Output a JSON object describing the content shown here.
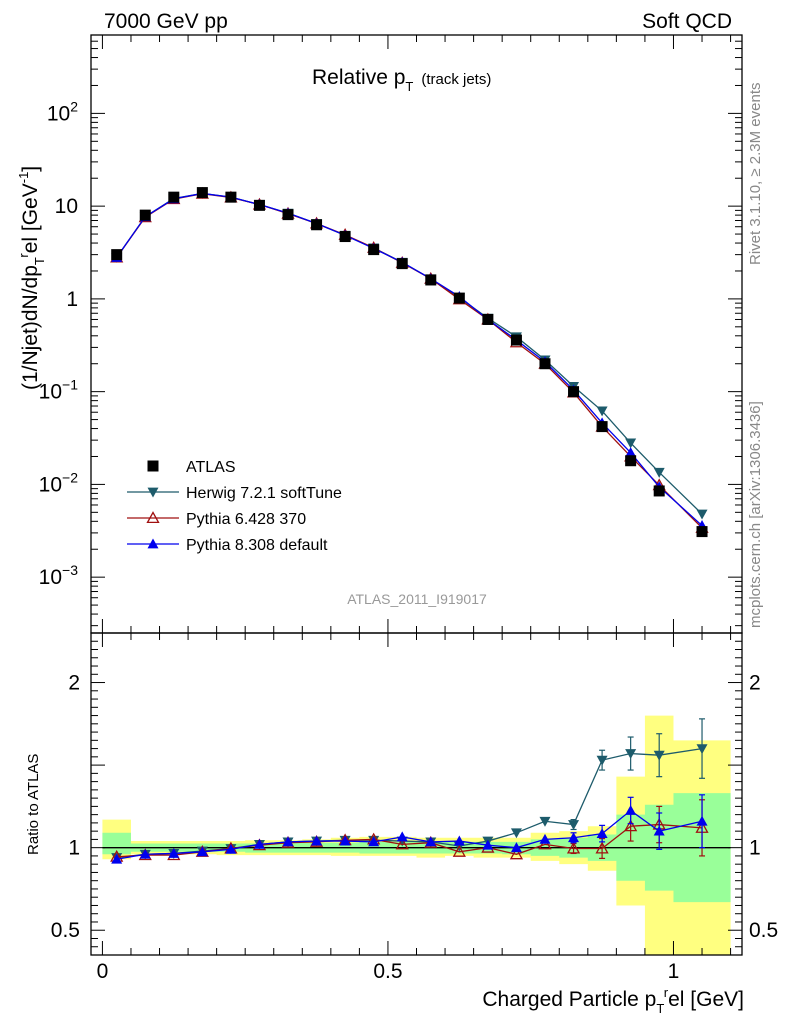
{
  "header": {
    "left": "7000 GeV pp",
    "right": "Soft QCD"
  },
  "side_labels": {
    "rivet": "Rivet 3.1.10, ≥ 2.3M events",
    "mcplots": "mcplots.cern.ch [arXiv:1306.3436]"
  },
  "plot_title": {
    "main": "Relative p",
    "sub": "T",
    "extra": "(track jets)"
  },
  "analysis_id": "ATLAS_2011_I919017",
  "chart_data": [
    {
      "type": "scatter",
      "panel": "main",
      "yscale": "log",
      "ylabel": "(1/Njet)dN/dpᵀʳel [GeV⁻¹]",
      "ylabel_parts": {
        "a": "(1/Njet)dN/dp",
        "sub": "T",
        "sup": "r",
        "b": "el [GeV",
        "supb": "-1",
        "c": "]"
      },
      "xlim": [
        -0.02,
        1.12
      ],
      "ylim": [
        0.00025,
        700
      ],
      "y_ticks": [
        {
          "v": 0.001,
          "base": "10",
          "exp": "−3"
        },
        {
          "v": 0.01,
          "base": "10",
          "exp": "−2"
        },
        {
          "v": 0.1,
          "base": "10",
          "exp": "−1"
        },
        {
          "v": 1,
          "base": "1",
          "exp": ""
        },
        {
          "v": 10,
          "base": "10",
          "exp": ""
        },
        {
          "v": 100,
          "base": "10",
          "exp": "2"
        }
      ],
      "x": [
        0.025,
        0.075,
        0.125,
        0.175,
        0.225,
        0.275,
        0.325,
        0.375,
        0.425,
        0.475,
        0.525,
        0.575,
        0.625,
        0.675,
        0.725,
        0.775,
        0.825,
        0.875,
        0.925,
        0.975,
        1.05
      ],
      "series": [
        {
          "name": "ATLAS",
          "color": "#000000",
          "marker": "square",
          "values": [
            3.0,
            8.0,
            12.5,
            14.0,
            12.5,
            10.2,
            8.1,
            6.3,
            4.7,
            3.4,
            2.4,
            1.6,
            1.02,
            0.6,
            0.36,
            0.2,
            0.1,
            0.042,
            0.018,
            0.0085,
            0.0031
          ]
        },
        {
          "name": "Herwig 7.2.1 softTune",
          "color": "#1d5b6b",
          "marker": "triangle-down",
          "values": [
            2.8,
            7.7,
            12.1,
            13.7,
            12.5,
            10.4,
            8.4,
            6.5,
            4.85,
            3.55,
            2.48,
            1.65,
            1.03,
            0.62,
            0.39,
            0.22,
            0.114,
            0.062,
            0.028,
            0.0135,
            0.0048
          ]
        },
        {
          "name": "Pythia 6.428 370",
          "color": "#a01010",
          "marker": "triangle-up-open",
          "values": [
            2.8,
            7.6,
            11.9,
            13.6,
            12.4,
            10.4,
            8.3,
            6.5,
            4.9,
            3.55,
            2.45,
            1.65,
            0.99,
            0.6,
            0.34,
            0.2,
            0.098,
            0.042,
            0.02,
            0.0098,
            0.0034
          ]
        },
        {
          "name": "Pythia 8.308 default",
          "color": "#0000ee",
          "marker": "triangle-up",
          "values": [
            2.8,
            7.7,
            12.0,
            13.7,
            12.5,
            10.4,
            8.4,
            6.5,
            4.85,
            3.5,
            2.48,
            1.65,
            1.06,
            0.6,
            0.36,
            0.21,
            0.104,
            0.046,
            0.022,
            0.0094,
            0.0036
          ]
        }
      ],
      "legend_position": "lower-left"
    },
    {
      "type": "scatter",
      "panel": "ratio",
      "ylabel": "Ratio to ATLAS",
      "xlabel": "Charged Particle pᵀʳel [GeV]",
      "xlabel_parts": {
        "a": "Charged Particle p",
        "sub": "T",
        "sup": "r",
        "b": "el [GeV]"
      },
      "xlim": [
        -0.02,
        1.12
      ],
      "ylim": [
        0.35,
        2.3
      ],
      "x_ticks": [
        {
          "v": 0,
          "label": "0"
        },
        {
          "v": 0.5,
          "label": "0.5"
        },
        {
          "v": 1,
          "label": "1"
        }
      ],
      "y_ticks": [
        {
          "v": 0.5,
          "label": "0.5"
        },
        {
          "v": 1,
          "label": "1"
        },
        {
          "v": 2,
          "label": "2"
        }
      ],
      "bin_edges": [
        0.0,
        0.05,
        0.1,
        0.15,
        0.2,
        0.25,
        0.3,
        0.35,
        0.4,
        0.45,
        0.5,
        0.55,
        0.6,
        0.65,
        0.7,
        0.75,
        0.8,
        0.85,
        0.9,
        0.95,
        1.0,
        1.1
      ],
      "band_outer": {
        "color": "#ffff80",
        "lo": [
          0.93,
          0.96,
          0.96,
          0.96,
          0.955,
          0.955,
          0.955,
          0.955,
          0.95,
          0.95,
          0.95,
          0.94,
          0.95,
          0.94,
          0.94,
          0.92,
          0.9,
          0.86,
          0.65,
          0.35,
          0.35
        ],
        "hi": [
          1.17,
          1.04,
          1.04,
          1.04,
          1.04,
          1.045,
          1.045,
          1.05,
          1.06,
          1.065,
          1.065,
          1.06,
          1.06,
          1.06,
          1.06,
          1.09,
          1.1,
          1.13,
          1.43,
          1.8,
          1.65
        ]
      },
      "band_inner": {
        "color": "#99ff99",
        "lo": [
          0.96,
          0.975,
          0.975,
          0.975,
          0.975,
          0.97,
          0.97,
          0.97,
          0.97,
          0.965,
          0.965,
          0.965,
          0.965,
          0.965,
          0.96,
          0.95,
          0.94,
          0.92,
          0.8,
          0.74,
          0.67
        ],
        "hi": [
          1.09,
          1.025,
          1.025,
          1.025,
          1.025,
          1.025,
          1.03,
          1.03,
          1.03,
          1.035,
          1.035,
          1.035,
          1.035,
          1.035,
          1.035,
          1.05,
          1.06,
          1.08,
          1.2,
          1.26,
          1.33
        ]
      },
      "x": [
        0.025,
        0.075,
        0.125,
        0.175,
        0.225,
        0.275,
        0.325,
        0.375,
        0.425,
        0.475,
        0.525,
        0.575,
        0.625,
        0.675,
        0.725,
        0.775,
        0.825,
        0.875,
        0.925,
        0.975,
        1.05
      ],
      "series": [
        {
          "name": "Herwig 7.2.1 softTune",
          "color": "#1d5b6b",
          "marker": "triangle-down",
          "values": [
            0.94,
            0.96,
            0.965,
            0.98,
            0.995,
            1.02,
            1.035,
            1.04,
            1.045,
            1.045,
            1.04,
            1.035,
            1.01,
            1.04,
            1.09,
            1.16,
            1.14,
            1.53,
            1.57,
            1.56,
            1.6
          ],
          "err": [
            0,
            0,
            0,
            0,
            0,
            0,
            0,
            0,
            0,
            0,
            0,
            0,
            0,
            0,
            0,
            0,
            0.03,
            0.06,
            0.1,
            0.13,
            0.18
          ]
        },
        {
          "name": "Pythia 6.428 370",
          "color": "#a01010",
          "marker": "triangle-up-open",
          "values": [
            0.945,
            0.955,
            0.955,
            0.975,
            0.995,
            1.015,
            1.03,
            1.035,
            1.045,
            1.05,
            1.02,
            1.03,
            0.975,
            1.0,
            0.96,
            1.02,
            0.995,
            0.995,
            1.13,
            1.14,
            1.12
          ],
          "err": [
            0,
            0,
            0,
            0,
            0,
            0,
            0,
            0,
            0,
            0,
            0,
            0,
            0,
            0,
            0,
            0,
            0.03,
            0.06,
            0.09,
            0.11,
            0.17
          ]
        },
        {
          "name": "Pythia 8.308 default",
          "color": "#0000ee",
          "marker": "triangle-up",
          "values": [
            0.93,
            0.96,
            0.965,
            0.975,
            0.99,
            1.02,
            1.035,
            1.04,
            1.04,
            1.035,
            1.065,
            1.035,
            1.04,
            1.015,
            1.0,
            1.05,
            1.06,
            1.085,
            1.225,
            1.1,
            1.16
          ],
          "err": [
            0,
            0,
            0,
            0,
            0,
            0,
            0,
            0,
            0,
            0,
            0,
            0,
            0,
            0,
            0,
            0,
            0.03,
            0.05,
            0.08,
            0.11,
            0.16
          ]
        }
      ]
    }
  ]
}
